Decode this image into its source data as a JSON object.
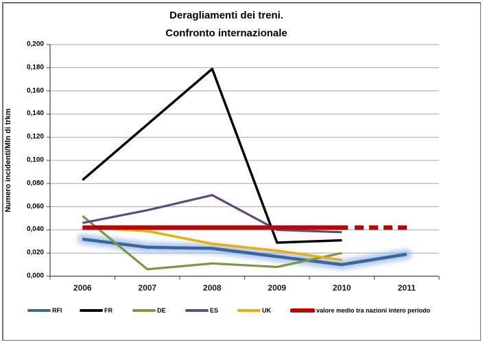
{
  "title_line1": "Deragliamenti dei treni.",
  "title_line2": "Confronto internazionale",
  "chart_data": {
    "type": "line",
    "title": "Deragliamenti dei treni. Confronto internazionale",
    "xlabel": "",
    "ylabel": "Numero incidenti/Mln di trkm",
    "categories": [
      "2006",
      "2007",
      "2008",
      "2009",
      "2010",
      "2011"
    ],
    "ylim": [
      0.0,
      0.2
    ],
    "ytick_step": 0.02,
    "ytick_labels": [
      "0,000",
      "0,020",
      "0,040",
      "0,060",
      "0,080",
      "0,100",
      "0,120",
      "0,140",
      "0,160",
      "0,180",
      "0,200"
    ],
    "grid": "horizontal-only",
    "legend_position": "bottom",
    "colors": {
      "grid": "#A6A6A6",
      "axis": "#404040",
      "rfi_glow": "#8FB4E3"
    },
    "series": [
      {
        "name": "RFI",
        "color": "#3A66A0",
        "glow": true,
        "values": [
          0.032,
          0.025,
          0.024,
          0.017,
          0.01,
          0.019
        ]
      },
      {
        "name": "FR",
        "color": "#000000",
        "values": [
          0.083,
          0.131,
          0.179,
          0.029,
          0.031,
          null
        ]
      },
      {
        "name": "DE",
        "color": "#78993E",
        "values": [
          0.052,
          0.006,
          0.011,
          0.008,
          0.02,
          null
        ]
      },
      {
        "name": "ES",
        "color": "#604A7B",
        "values": [
          0.046,
          0.057,
          0.07,
          0.04,
          0.038,
          null
        ]
      },
      {
        "name": "UK",
        "color": "#EFAD00",
        "values": [
          0.042,
          0.039,
          0.028,
          0.022,
          0.014,
          null
        ]
      },
      {
        "name": "valore medio tra nazioni intero periodo",
        "color": "#BE0506",
        "average_line": true,
        "value": 0.042,
        "solid_span": [
          "2006",
          "2010"
        ],
        "dashed_span": [
          "2010",
          "2011"
        ],
        "values": [
          0.042,
          0.042,
          0.042,
          0.042,
          0.042,
          0.042
        ]
      }
    ]
  }
}
